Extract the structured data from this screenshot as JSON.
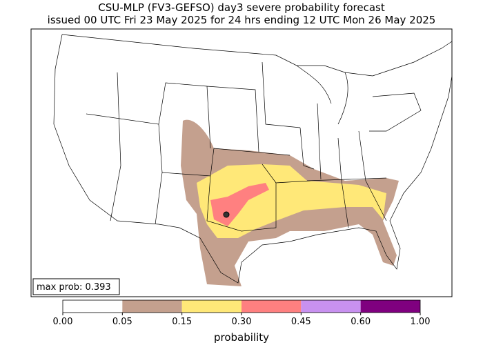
{
  "title": [
    "CSU-MLP (FV3-GEFSO) day3 severe probability forecast",
    "issued 00 UTC Fri 23 May 2025 for 24 hrs ending 12 UTC Mon 26 May 2025"
  ],
  "max_prob": "max prob: 0.393",
  "colorbar": {
    "label": "probability",
    "ticks": [
      {
        "value": 0,
        "label": "0.00"
      },
      {
        "value": 0.05,
        "label": "0.05"
      },
      {
        "value": 0.15,
        "label": "0.15"
      },
      {
        "value": 0.3,
        "label": "0.30"
      },
      {
        "value": 0.45,
        "label": "0.45"
      },
      {
        "value": 0.6,
        "label": "0.60"
      },
      {
        "value": 1,
        "label": "1.00"
      }
    ],
    "colors": [
      "#ffffff",
      "#c4a08e",
      "#ffe878",
      "#ff8080",
      "#c891f0",
      "#7f007f"
    ]
  }
}
